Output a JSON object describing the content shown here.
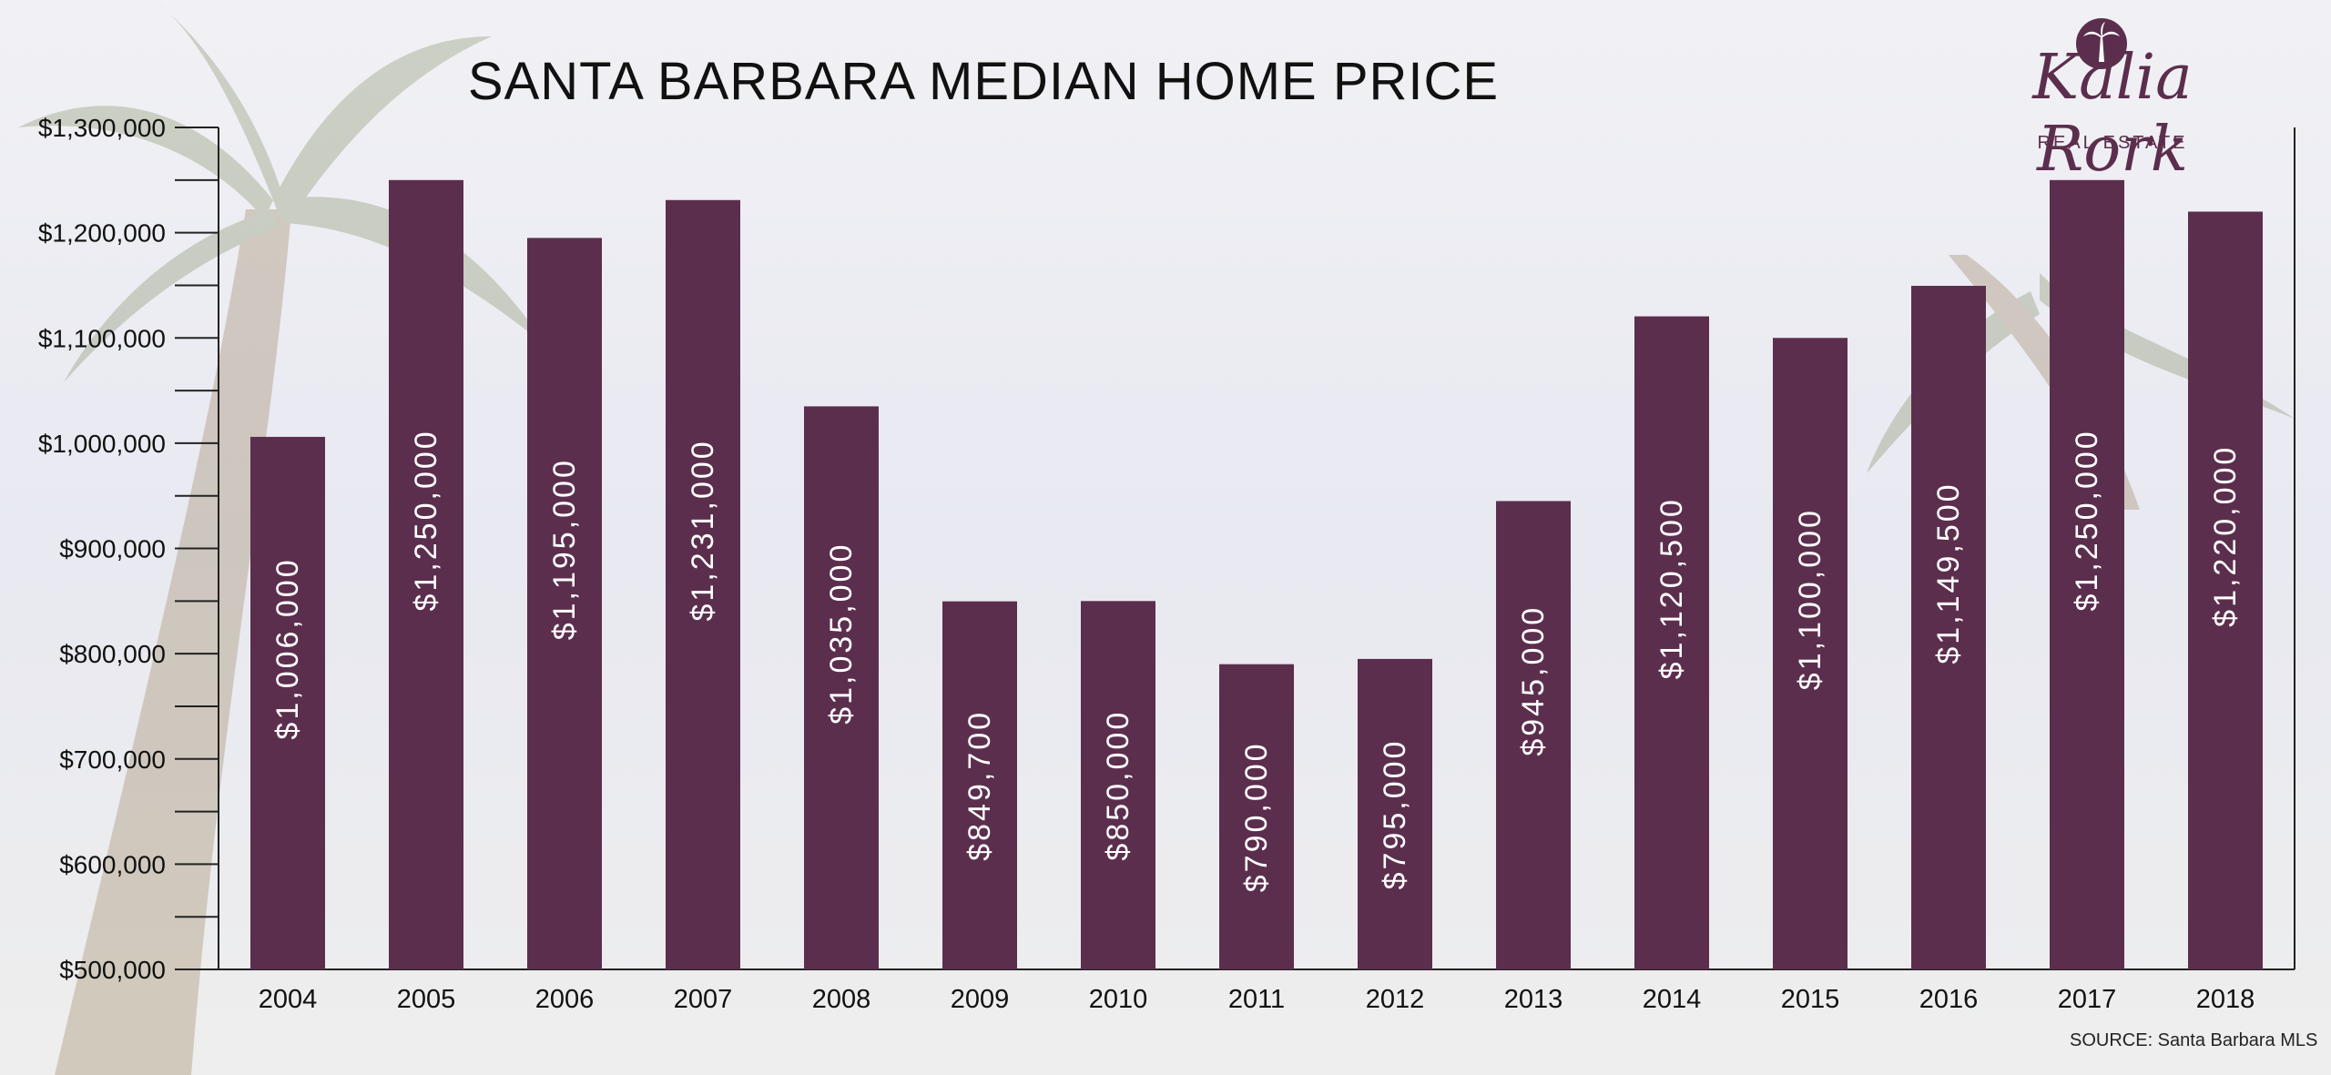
{
  "header": {
    "title": "SANTA BARBARA MEDIAN HOME PRICE"
  },
  "brand": {
    "name": "Kalia Rork",
    "subtitle": "REAL ESTATE",
    "color": "#5c2e4d"
  },
  "footer": {
    "source": "SOURCE: Santa Barbara MLS"
  },
  "chart_data": {
    "type": "bar",
    "title": "SANTA BARBARA MEDIAN HOME PRICE",
    "xlabel": "",
    "ylabel": "",
    "ylim": [
      500000,
      1300000
    ],
    "grid": false,
    "bar_color": "#5c2e4d",
    "y_ticks": [
      "$500,000",
      "$600,000",
      "$700,000",
      "$800,000",
      "$900,000",
      "$1,000,000",
      "$1,100,000",
      "$1,200,000",
      "$1,300,000"
    ],
    "categories": [
      "2004",
      "2005",
      "2006",
      "2007",
      "2008",
      "2009",
      "2010",
      "2011",
      "2012",
      "2013",
      "2014",
      "2015",
      "2016",
      "2017",
      "2018"
    ],
    "values": [
      1006000,
      1250000,
      1195000,
      1231000,
      1035000,
      849700,
      850000,
      790000,
      795000,
      945000,
      1120500,
      1100000,
      1149500,
      1250000,
      1220000
    ],
    "labels": [
      "$1,006,000",
      "$1,250,000",
      "$1,195,000",
      "$1,231,000",
      "$1,035,000",
      "$849,700",
      "$850,000",
      "$790,000",
      "$795,000",
      "$945,000",
      "$1,120,500",
      "$1,100,000",
      "$1,149,500",
      "$1,250,000",
      "$1,220,000"
    ]
  }
}
